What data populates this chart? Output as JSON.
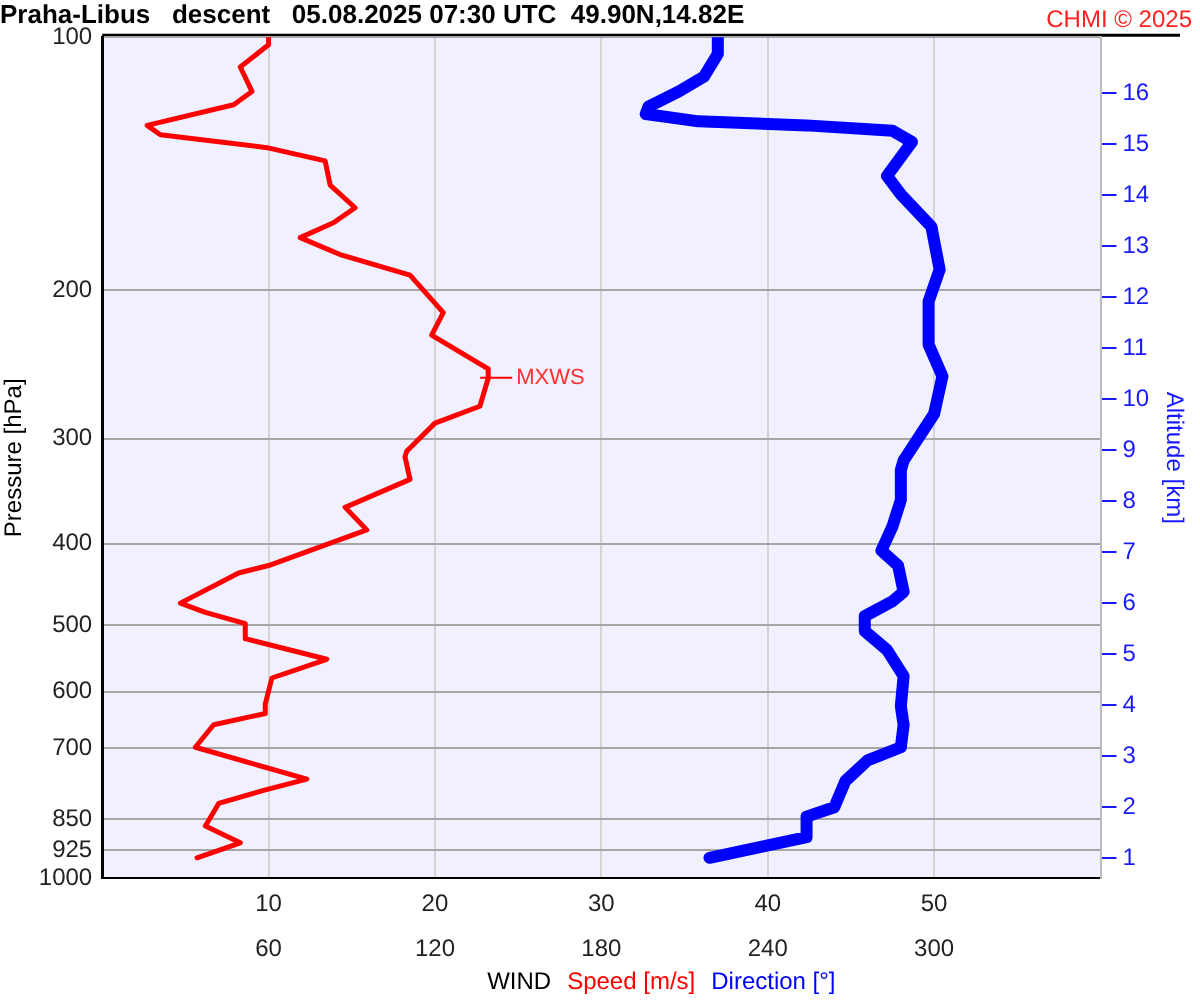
{
  "chart_data": {
    "type": "line",
    "orientation": "horizontal",
    "title": "Praha-Libus   descent   05.08.2025 07:30 UTC  49.90N,14.82E",
    "xlabel": "WIND",
    "ylabel": "Pressure [hPa]",
    "y2label": "Altitude [km]",
    "annotations": [
      "CHMI © 2025",
      {
        "text": "MXWS",
        "x": 23.2,
        "y": 254
      }
    ],
    "xlim": [
      0,
      60
    ],
    "xticks": [
      10,
      20,
      30,
      40,
      50
    ],
    "x2lim": [
      0,
      360
    ],
    "x2ticks": [
      60,
      120,
      180,
      240,
      300
    ],
    "ylim": [
      1000,
      100
    ],
    "yticks": [
      100,
      200,
      300,
      400,
      500,
      600,
      700,
      850,
      925,
      1000
    ],
    "y2lim": [
      0.6,
      17.1
    ],
    "y2ticks": [
      1,
      2,
      3,
      4,
      5,
      6,
      7,
      8,
      9,
      10,
      11,
      12,
      13,
      14,
      15,
      16
    ],
    "log": "y",
    "grid": true,
    "legend": "bottom",
    "marker": "none",
    "line_style": "solid",
    "series": [
      {
        "name": "Speed [m/s]",
        "color": "#ff0000",
        "values": [
          10,
          10,
          8.3,
          9,
          7.9,
          2.7,
          3.5,
          9.9,
          13.4,
          13.7,
          15.2,
          13.9,
          11.9,
          14.3,
          18.5,
          20.5,
          19.8,
          23.2,
          23.2,
          22.7,
          20,
          18.3,
          18.2,
          18.5,
          14.6,
          15.9,
          10,
          8.2,
          4.7,
          6.2,
          8.6,
          8.6,
          13.5,
          10.2,
          9.8,
          9.8,
          6.7,
          5.6,
          12.3,
          9.7,
          7,
          6.2,
          8.3,
          5.7
        ],
        "x": [
          100,
          102.1,
          108.5,
          116.0,
          120.3,
          127.3,
          130.6,
          135.3,
          140.3,
          149.9,
          159.5,
          166.2,
          173.1,
          181.3,
          191.8,
          212.5,
          226.0,
          247.9,
          254.3,
          274.6,
          287.6,
          310.6,
          315.4,
          335.5,
          362.2,
          385.2,
          424.7,
          433.5,
          470.7,
          482.9,
          497.9,
          518.8,
          548.9,
          577.8,
          620.8,
          636.8,
          656.7,
          698.4,
          762.1,
          785.8,
          814.5,
          866.3,
          907.3,
          945.1
        ]
      },
      {
        "name": "Direction [°]",
        "color": "#0000ff",
        "axis": "x2",
        "values": [
          222,
          222,
          217,
          208,
          197,
          196,
          215,
          254,
          285,
          292,
          283,
          288,
          299,
          302,
          298,
          298,
          303,
          300,
          289,
          288,
          288,
          285,
          281,
          287,
          289,
          285,
          275,
          275,
          283,
          289,
          288,
          289,
          288,
          276,
          268,
          264,
          254,
          254,
          238,
          219
        ],
        "x": [
          100,
          104.7,
          111.4,
          116.0,
          120.9,
          123.4,
          125.9,
          127.3,
          129.2,
          133.2,
          146.2,
          153.8,
          167.9,
          188.9,
          206.1,
          231.9,
          253.0,
          280.4,
          318.6,
          327.0,
          354.9,
          381.4,
          407.7,
          424.7,
          456.4,
          468.3,
          487.8,
          508.2,
          535.0,
          574.8,
          624.0,
          656.7,
          698.4,
          724.0,
          766.0,
          823.0,
          844.4,
          893.4,
          916.4,
          945.1
        ]
      }
    ]
  }
}
